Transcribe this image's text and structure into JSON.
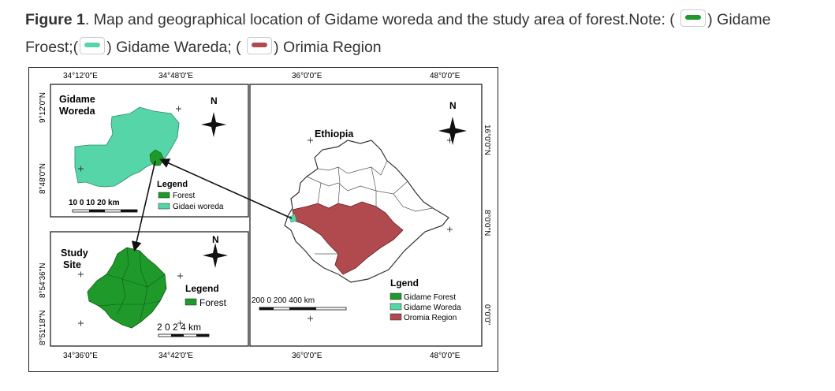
{
  "caption": {
    "figure_label": "Figure 1",
    "text_before": ". Map and geographical location of Gidame woreda and the study area of forest.Note: (",
    "text_after_forest": ") Gidame Froest;(",
    "text_after_woreda": ") Gidame Wareda; (",
    "text_after_oromia": ") Orimia Region",
    "swatch_icons": [
      "forest-swatch-icon",
      "woreda-swatch-icon",
      "oromia-swatch-icon"
    ]
  },
  "colors": {
    "forest": "#1f9a2a",
    "woreda": "#56d6a8",
    "oromia": "#b14a4f",
    "frame": "#222222"
  },
  "panel_woreda": {
    "top_ticks": [
      "34°12'0\"E",
      "34°48'0\"E"
    ],
    "side_ticks": [
      "9°12'0\"N",
      "8°48'0\"N"
    ],
    "title_line1": "Gidame",
    "title_line2": "Woreda",
    "north": "N",
    "legend_title": "Legend",
    "legend_items": [
      "Forest",
      "Gidaei woreda"
    ],
    "scale": "10  0   10  20 km"
  },
  "panel_study": {
    "bottom_ticks": [
      "34°36'0\"E",
      "34°42'0\"E"
    ],
    "side_ticks": [
      "8°54'36\"N",
      "8°51'18\"N"
    ],
    "title_line1": "Study",
    "title_line2": "Site",
    "north": "N",
    "legend_title": "Legend",
    "legend_items": [
      "Forest"
    ],
    "scale": "2  0  2   4 km"
  },
  "panel_ethiopia": {
    "top_ticks": [
      "36°0'0\"E",
      "48°0'0\"E"
    ],
    "bottom_ticks": [
      "36°0'0\"E",
      "48°0'0\"E"
    ],
    "right_ticks": [
      "16°0'0\"N",
      "8°0'0\"N",
      "0°0'0\""
    ],
    "country_label": "Ethiopia",
    "north": "N",
    "legend_title": "Lgend",
    "legend_items": [
      "Gidame Forest",
      "Gidame Woreda",
      "Oromia Region"
    ],
    "scale": "200   0    200  400    km"
  }
}
